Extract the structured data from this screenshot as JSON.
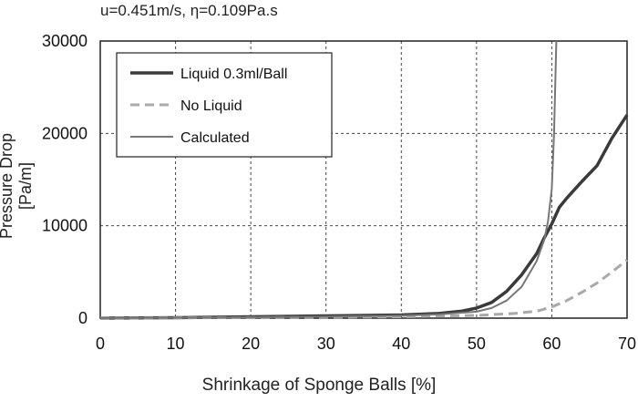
{
  "chart_data": {
    "type": "line",
    "title": "u=0.451m/s, η=0.109Pa.s",
    "xlabel": "Shrinkage of Sponge Balls [%]",
    "ylabel": "Pressure Drop [Pa/m]",
    "xlim": [
      0,
      70
    ],
    "ylim": [
      0,
      30000
    ],
    "x_ticks": [
      "0",
      "10",
      "20",
      "30",
      "40",
      "50",
      "60",
      "70"
    ],
    "y_ticks": [
      "0",
      "10000",
      "20000",
      "30000"
    ],
    "grid": true,
    "legend_position": "top-left",
    "series": [
      {
        "name": "Liquid 0.3ml/Ball",
        "color": "#3a3a3a",
        "style": "thick-solid",
        "x": [
          0,
          10,
          20,
          30,
          40,
          45,
          48,
          50,
          52,
          54,
          56,
          58,
          59,
          60,
          61,
          62,
          64,
          66,
          68,
          70
        ],
        "y": [
          0,
          50,
          150,
          250,
          350,
          500,
          750,
          1100,
          1700,
          2900,
          4700,
          7000,
          8700,
          10200,
          12000,
          13000,
          14800,
          16500,
          19500,
          22000
        ]
      },
      {
        "name": "No Liquid",
        "color": "#a9a9a9",
        "style": "dashed",
        "x": [
          0,
          10,
          20,
          30,
          40,
          45,
          50,
          55,
          58,
          60,
          62,
          64,
          66,
          68,
          70
        ],
        "y": [
          0,
          30,
          60,
          100,
          150,
          220,
          300,
          500,
          750,
          1200,
          1900,
          2800,
          3800,
          5000,
          6300
        ]
      },
      {
        "name": "Calculated",
        "color": "#777777",
        "style": "thin-solid",
        "x": [
          0,
          10,
          20,
          30,
          40,
          45,
          50,
          52,
          54,
          56,
          58,
          59,
          59.5,
          60,
          60.3,
          60.6
        ],
        "y": [
          0,
          40,
          90,
          160,
          280,
          400,
          700,
          1100,
          1900,
          3400,
          6200,
          8500,
          10500,
          14000,
          20000,
          30000
        ]
      }
    ]
  }
}
